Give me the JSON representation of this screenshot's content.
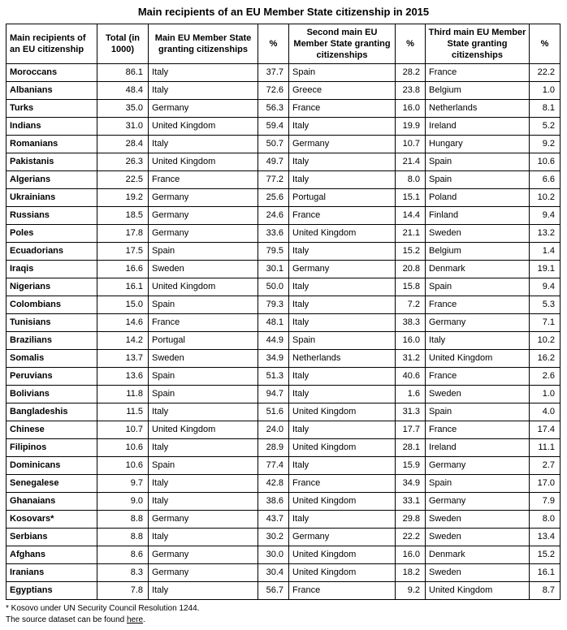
{
  "title": "Main recipients of an EU Member State citizenship in 2015",
  "colors": {
    "text": "#000000",
    "border": "#000000",
    "link": "#000000"
  },
  "footnotes": {
    "kosovo_note": "* Kosovo under UN Security Council Resolution 1244.",
    "source_text_before": "The source dataset can be found ",
    "source_link_label": "here",
    "source_text_after": "."
  },
  "chart_data": {
    "type": "table",
    "title": "Main recipients of an EU Member State citizenship in 2015",
    "columns": [
      "Main recipients of an EU citizenship",
      "Total (in 1000)",
      "Main EU Member State granting citizenships",
      "%",
      "Second main EU Member State granting citizenships",
      "%",
      "Third main EU Member State granting citizenships",
      "%"
    ],
    "rows": [
      [
        "Moroccans",
        "86.1",
        "Italy",
        "37.7",
        "Spain",
        "28.2",
        "France",
        "22.2"
      ],
      [
        "Albanians",
        "48.4",
        "Italy",
        "72.6",
        "Greece",
        "23.8",
        "Belgium",
        "1.0"
      ],
      [
        "Turks",
        "35.0",
        "Germany",
        "56.3",
        "France",
        "16.0",
        "Netherlands",
        "8.1"
      ],
      [
        "Indians",
        "31.0",
        "United Kingdom",
        "59.4",
        "Italy",
        "19.9",
        "Ireland",
        "5.2"
      ],
      [
        "Romanians",
        "28.4",
        "Italy",
        "50.7",
        "Germany",
        "10.7",
        "Hungary",
        "9.2"
      ],
      [
        "Pakistanis",
        "26.3",
        "United Kingdom",
        "49.7",
        "Italy",
        "21.4",
        "Spain",
        "10.6"
      ],
      [
        "Algerians",
        "22.5",
        "France",
        "77.2",
        "Italy",
        "8.0",
        "Spain",
        "6.6"
      ],
      [
        "Ukrainians",
        "19.2",
        "Germany",
        "25.6",
        "Portugal",
        "15.1",
        "Poland",
        "10.2"
      ],
      [
        "Russians",
        "18.5",
        "Germany",
        "24.6",
        "France",
        "14.4",
        "Finland",
        "9.4"
      ],
      [
        "Poles",
        "17.8",
        "Germany",
        "33.6",
        "United Kingdom",
        "21.1",
        "Sweden",
        "13.2"
      ],
      [
        "Ecuadorians",
        "17.5",
        "Spain",
        "79.5",
        "Italy",
        "15.2",
        "Belgium",
        "1.4"
      ],
      [
        "Iraqis",
        "16.6",
        "Sweden",
        "30.1",
        "Germany",
        "20.8",
        "Denmark",
        "19.1"
      ],
      [
        "Nigerians",
        "16.1",
        "United Kingdom",
        "50.0",
        "Italy",
        "15.8",
        "Spain",
        "9.4"
      ],
      [
        "Colombians",
        "15.0",
        "Spain",
        "79.3",
        "Italy",
        "7.2",
        "France",
        "5.3"
      ],
      [
        "Tunisians",
        "14.6",
        "France",
        "48.1",
        "Italy",
        "38.3",
        "Germany",
        "7.1"
      ],
      [
        "Brazilians",
        "14.2",
        "Portugal",
        "44.9",
        "Spain",
        "16.0",
        "Italy",
        "10.2"
      ],
      [
        "Somalis",
        "13.7",
        "Sweden",
        "34.9",
        "Netherlands",
        "31.2",
        "United Kingdom",
        "16.2"
      ],
      [
        "Peruvians",
        "13.6",
        "Spain",
        "51.3",
        "Italy",
        "40.6",
        "France",
        "2.6"
      ],
      [
        "Bolivians",
        "11.8",
        "Spain",
        "94.7",
        "Italy",
        "1.6",
        "Sweden",
        "1.0"
      ],
      [
        "Bangladeshis",
        "11.5",
        "Italy",
        "51.6",
        "United Kingdom",
        "31.3",
        "Spain",
        "4.0"
      ],
      [
        "Chinese",
        "10.7",
        "United Kingdom",
        "24.0",
        "Italy",
        "17.7",
        "France",
        "17.4"
      ],
      [
        "Filipinos",
        "10.6",
        "Italy",
        "28.9",
        "United Kingdom",
        "28.1",
        "Ireland",
        "11.1"
      ],
      [
        "Dominicans",
        "10.6",
        "Spain",
        "77.4",
        "Italy",
        "15.9",
        "Germany",
        "2.7"
      ],
      [
        "Senegalese",
        "9.7",
        "Italy",
        "42.8",
        "France",
        "34.9",
        "Spain",
        "17.0"
      ],
      [
        "Ghanaians",
        "9.0",
        "Italy",
        "38.6",
        "United Kingdom",
        "33.1",
        "Germany",
        "7.9"
      ],
      [
        "Kosovars*",
        "8.8",
        "Germany",
        "43.7",
        "Italy",
        "29.8",
        "Sweden",
        "8.0"
      ],
      [
        "Serbians",
        "8.8",
        "Italy",
        "30.2",
        "Germany",
        "22.2",
        "Sweden",
        "13.4"
      ],
      [
        "Afghans",
        "8.6",
        "Germany",
        "30.0",
        "United Kingdom",
        "16.0",
        "Denmark",
        "15.2"
      ],
      [
        "Iranians",
        "8.3",
        "Germany",
        "30.4",
        "United Kingdom",
        "18.2",
        "Sweden",
        "16.1"
      ],
      [
        "Egyptians",
        "7.8",
        "Italy",
        "56.7",
        "France",
        "9.2",
        "United Kingdom",
        "8.7"
      ]
    ]
  }
}
